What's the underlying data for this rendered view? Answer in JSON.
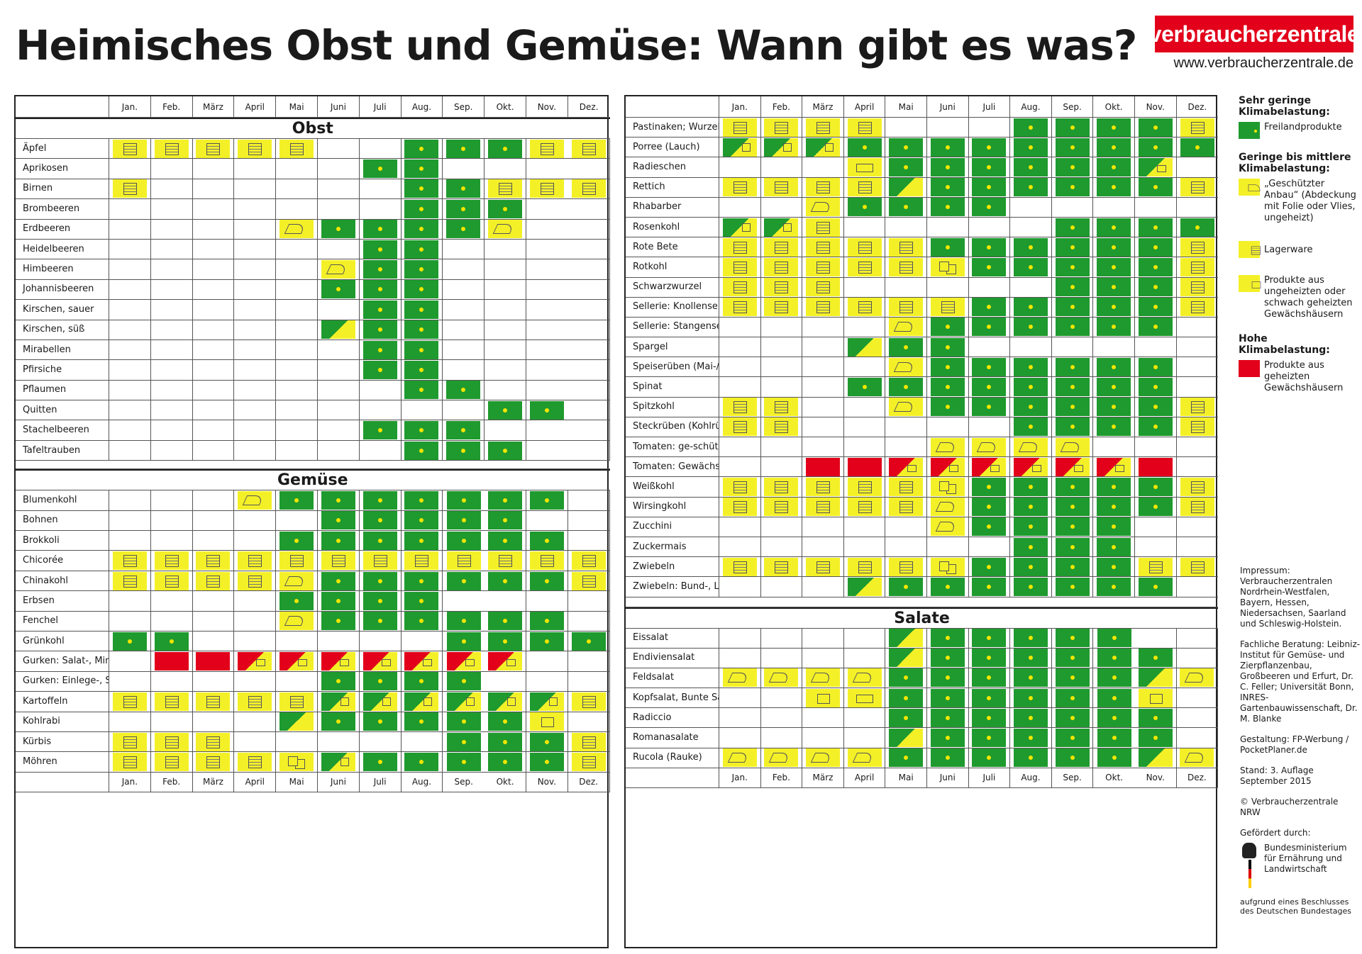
{
  "title": "Heimisches Obst und Gemüse: Wann gibt es was?",
  "logo_text": "verbraucherzentrale",
  "url": "www.verbraucherzentrale.de",
  "months": [
    "Jan.",
    "Feb.",
    "März",
    "April",
    "Mai",
    "Juni",
    "Juli",
    "Aug.",
    "Sep.",
    "Okt.",
    "Nov.",
    "Dez."
  ],
  "status_codes": {
    "G": "Freilandprodukte",
    "S": "Geschützter Anbau",
    "L": "Lagerware",
    "U": "Produkte aus ungeheizten oder schwach geheizten Gewächshäusern",
    "H": "Produkte aus geheizten Gewächshäusern"
  },
  "colors": {
    "green": "#1f9a2e",
    "yellow": "#f4f028",
    "red": "#e2001a"
  },
  "left_sections": [
    {
      "name": "Obst",
      "rows": [
        {
          "label": "Äpfel",
          "m": [
            "L",
            "L",
            "L",
            "L",
            "L",
            "",
            "",
            "G",
            "G",
            "G",
            "L",
            "L"
          ]
        },
        {
          "label": "Aprikosen",
          "m": [
            "",
            "",
            "",
            "",
            "",
            "",
            "G",
            "G",
            "",
            "",
            "",
            ""
          ]
        },
        {
          "label": "Birnen",
          "m": [
            "L",
            "",
            "",
            "",
            "",
            "",
            "",
            "G",
            "G",
            "L",
            "L",
            "L"
          ]
        },
        {
          "label": "Brombeeren",
          "m": [
            "",
            "",
            "",
            "",
            "",
            "",
            "",
            "G",
            "G",
            "G",
            "",
            ""
          ]
        },
        {
          "label": "Erdbeeren",
          "m": [
            "",
            "",
            "",
            "",
            "S",
            "G",
            "G",
            "G",
            "G",
            "S",
            "",
            ""
          ]
        },
        {
          "label": "Heidelbeeren",
          "m": [
            "",
            "",
            "",
            "",
            "",
            "",
            "G",
            "G",
            "",
            "",
            "",
            ""
          ]
        },
        {
          "label": "Himbeeren",
          "m": [
            "",
            "",
            "",
            "",
            "",
            "S",
            "G",
            "G",
            "",
            "",
            "",
            ""
          ]
        },
        {
          "label": "Johannisbeeren",
          "m": [
            "",
            "",
            "",
            "",
            "",
            "G",
            "G",
            "G",
            "",
            "",
            "",
            ""
          ]
        },
        {
          "label": "Kirschen, sauer",
          "m": [
            "",
            "",
            "",
            "",
            "",
            "",
            "G",
            "G",
            "",
            "",
            "",
            ""
          ]
        },
        {
          "label": "Kirschen, süß",
          "m": [
            "",
            "",
            "",
            "",
            "",
            "GS",
            "G",
            "G",
            "",
            "",
            "",
            ""
          ]
        },
        {
          "label": "Mirabellen",
          "m": [
            "",
            "",
            "",
            "",
            "",
            "",
            "G",
            "G",
            "",
            "",
            "",
            ""
          ]
        },
        {
          "label": "Pfirsiche",
          "m": [
            "",
            "",
            "",
            "",
            "",
            "",
            "G",
            "G",
            "",
            "",
            "",
            ""
          ]
        },
        {
          "label": "Pflaumen",
          "m": [
            "",
            "",
            "",
            "",
            "",
            "",
            "",
            "G",
            "G",
            "",
            "",
            ""
          ]
        },
        {
          "label": "Quitten",
          "m": [
            "",
            "",
            "",
            "",
            "",
            "",
            "",
            "",
            "",
            "G",
            "G",
            ""
          ]
        },
        {
          "label": "Stachelbeeren",
          "m": [
            "",
            "",
            "",
            "",
            "",
            "",
            "G",
            "G",
            "G",
            "",
            "",
            ""
          ]
        },
        {
          "label": "Tafeltrauben",
          "m": [
            "",
            "",
            "",
            "",
            "",
            "",
            "",
            "G",
            "G",
            "G",
            "",
            ""
          ]
        }
      ]
    },
    {
      "name": "Gemüse",
      "rows": [
        {
          "label": "Blumenkohl",
          "m": [
            "",
            "",
            "",
            "S",
            "G",
            "G",
            "G",
            "G",
            "G",
            "G",
            "G",
            ""
          ]
        },
        {
          "label": "Bohnen",
          "m": [
            "",
            "",
            "",
            "",
            "",
            "G",
            "G",
            "G",
            "G",
            "G",
            "",
            ""
          ]
        },
        {
          "label": "Brokkoli",
          "m": [
            "",
            "",
            "",
            "",
            "G",
            "G",
            "G",
            "G",
            "G",
            "G",
            "G",
            ""
          ]
        },
        {
          "label": "Chicorée",
          "m": [
            "L",
            "L",
            "L",
            "L",
            "L",
            "L",
            "L",
            "L",
            "L",
            "L",
            "L",
            "L"
          ]
        },
        {
          "label": "Chinakohl",
          "m": [
            "L",
            "L",
            "L",
            "L",
            "S",
            "G",
            "G",
            "G",
            "G",
            "G",
            "G",
            "L"
          ]
        },
        {
          "label": "Erbsen",
          "m": [
            "",
            "",
            "",
            "",
            "G",
            "G",
            "G",
            "G",
            "",
            "",
            "",
            ""
          ]
        },
        {
          "label": "Fenchel",
          "m": [
            "",
            "",
            "",
            "",
            "S",
            "G",
            "G",
            "G",
            "G",
            "G",
            "G",
            ""
          ]
        },
        {
          "label": "Grünkohl",
          "m": [
            "G",
            "G",
            "",
            "",
            "",
            "",
            "",
            "",
            "G",
            "G",
            "G",
            "G"
          ]
        },
        {
          "label": "Gurken: Salat-, Minigurken",
          "m": [
            "",
            "H",
            "H",
            "HU",
            "HU",
            "HU",
            "HU",
            "HU",
            "HU",
            "HU",
            "",
            ""
          ]
        },
        {
          "label": "Gurken: Einlege-, Schälgurken",
          "m": [
            "",
            "",
            "",
            "",
            "",
            "G",
            "G",
            "G",
            "G",
            "",
            "",
            ""
          ]
        },
        {
          "label": "Kartoffeln",
          "m": [
            "L",
            "L",
            "L",
            "L",
            "L",
            "GL",
            "GL",
            "GL",
            "GL",
            "GL",
            "GL",
            "L"
          ]
        },
        {
          "label": "Kohlrabi",
          "m": [
            "",
            "",
            "",
            "",
            "GS",
            "G",
            "G",
            "G",
            "G",
            "G",
            "U",
            ""
          ]
        },
        {
          "label": "Kürbis",
          "m": [
            "L",
            "L",
            "L",
            "",
            "",
            "",
            "",
            "",
            "G",
            "G",
            "G",
            "L"
          ]
        },
        {
          "label": "Möhren",
          "m": [
            "L",
            "L",
            "L",
            "L",
            "LS",
            "GL",
            "G",
            "G",
            "G",
            "G",
            "G",
            "L"
          ]
        }
      ]
    }
  ],
  "right_sections": [
    {
      "name": "",
      "rows": [
        {
          "label": "Pastinaken; Wurzelpetersilie",
          "m": [
            "L",
            "L",
            "L",
            "L",
            "",
            "",
            "",
            "G",
            "G",
            "G",
            "G",
            "L"
          ]
        },
        {
          "label": "Porree (Lauch)",
          "m": [
            "GL",
            "GL",
            "GL",
            "G",
            "G",
            "G",
            "G",
            "G",
            "G",
            "G",
            "G",
            "G"
          ]
        },
        {
          "label": "Radieschen",
          "m": [
            "",
            "",
            "",
            "SU",
            "G",
            "G",
            "G",
            "G",
            "G",
            "G",
            "GU",
            ""
          ]
        },
        {
          "label": "Rettich",
          "m": [
            "L",
            "L",
            "L",
            "L",
            "GS",
            "G",
            "G",
            "G",
            "G",
            "G",
            "G",
            "L"
          ]
        },
        {
          "label": "Rhabarber",
          "m": [
            "",
            "",
            "S",
            "G",
            "G",
            "G",
            "G",
            "",
            "",
            "",
            "",
            ""
          ]
        },
        {
          "label": "Rosenkohl",
          "m": [
            "GL",
            "GL",
            "L",
            "",
            "",
            "",
            "",
            "",
            "G",
            "G",
            "G",
            "G"
          ]
        },
        {
          "label": "Rote Bete",
          "m": [
            "L",
            "L",
            "L",
            "L",
            "L",
            "G",
            "G",
            "G",
            "G",
            "G",
            "G",
            "L"
          ]
        },
        {
          "label": "Rotkohl",
          "m": [
            "L",
            "L",
            "L",
            "L",
            "L",
            "LS",
            "G",
            "G",
            "G",
            "G",
            "G",
            "L"
          ]
        },
        {
          "label": "Schwarzwurzel",
          "m": [
            "L",
            "L",
            "L",
            "",
            "",
            "",
            "",
            "",
            "G",
            "G",
            "G",
            "L"
          ]
        },
        {
          "label": "Sellerie: Knollensellerie",
          "m": [
            "L",
            "L",
            "L",
            "L",
            "L",
            "L",
            "G",
            "G",
            "G",
            "G",
            "G",
            "L"
          ]
        },
        {
          "label": "Sellerie: Stangensellerie",
          "m": [
            "",
            "",
            "",
            "",
            "S",
            "G",
            "G",
            "G",
            "G",
            "G",
            "G",
            ""
          ]
        },
        {
          "label": "Spargel",
          "m": [
            "",
            "",
            "",
            "GS",
            "G",
            "G",
            "",
            "",
            "",
            "",
            "",
            ""
          ]
        },
        {
          "label": "Speiserüben (Mai-/Herbstrüben)",
          "m": [
            "",
            "",
            "",
            "",
            "S",
            "G",
            "G",
            "G",
            "G",
            "G",
            "G",
            ""
          ]
        },
        {
          "label": "Spinat",
          "m": [
            "",
            "",
            "",
            "G",
            "G",
            "G",
            "G",
            "G",
            "G",
            "G",
            "G",
            ""
          ]
        },
        {
          "label": "Spitzkohl",
          "m": [
            "L",
            "L",
            "",
            "",
            "S",
            "G",
            "G",
            "G",
            "G",
            "G",
            "G",
            "L"
          ]
        },
        {
          "label": "Steckrüben (Kohlrüben)",
          "m": [
            "L",
            "L",
            "",
            "",
            "",
            "",
            "",
            "G",
            "G",
            "G",
            "G",
            "L"
          ]
        },
        {
          "label": "Tomaten: ge-schützter Anbau",
          "m": [
            "",
            "",
            "",
            "",
            "",
            "S",
            "S",
            "S",
            "S",
            "",
            "",
            ""
          ]
        },
        {
          "label": "Tomaten: Gewächshaus",
          "m": [
            "",
            "",
            "H",
            "H",
            "HU",
            "HU",
            "HU",
            "HU",
            "HU",
            "HU",
            "H",
            ""
          ]
        },
        {
          "label": "Weißkohl",
          "m": [
            "L",
            "L",
            "L",
            "L",
            "L",
            "LS",
            "G",
            "G",
            "G",
            "G",
            "G",
            "L"
          ]
        },
        {
          "label": "Wirsingkohl",
          "m": [
            "L",
            "L",
            "L",
            "L",
            "L",
            "S",
            "G",
            "G",
            "G",
            "G",
            "G",
            "L"
          ]
        },
        {
          "label": "Zucchini",
          "m": [
            "",
            "",
            "",
            "",
            "",
            "S",
            "G",
            "G",
            "G",
            "G",
            "",
            ""
          ]
        },
        {
          "label": "Zuckermais",
          "m": [
            "",
            "",
            "",
            "",
            "",
            "",
            "",
            "G",
            "G",
            "G",
            "",
            ""
          ]
        },
        {
          "label": "Zwiebeln",
          "m": [
            "L",
            "L",
            "L",
            "L",
            "L",
            "LS",
            "G",
            "G",
            "G",
            "G",
            "L",
            "L"
          ]
        },
        {
          "label": "Zwiebeln: Bund-, Lauch-, Frühlings-",
          "m": [
            "",
            "",
            "",
            "GS",
            "G",
            "G",
            "G",
            "G",
            "G",
            "G",
            "G",
            ""
          ]
        }
      ]
    },
    {
      "name": "Salate",
      "rows": [
        {
          "label": "Eissalat",
          "m": [
            "",
            "",
            "",
            "",
            "GS",
            "G",
            "G",
            "G",
            "G",
            "G",
            "",
            ""
          ]
        },
        {
          "label": "Endiviensalat",
          "m": [
            "",
            "",
            "",
            "",
            "GS",
            "G",
            "G",
            "G",
            "G",
            "G",
            "G",
            ""
          ]
        },
        {
          "label": "Feldsalat",
          "m": [
            "S",
            "S",
            "S",
            "S",
            "G",
            "G",
            "G",
            "G",
            "G",
            "G",
            "GS",
            "S"
          ]
        },
        {
          "label": "Kopfsalat, Bunte Salate",
          "m": [
            "",
            "",
            "U",
            "SU",
            "G",
            "G",
            "G",
            "G",
            "G",
            "G",
            "U",
            ""
          ]
        },
        {
          "label": "Radiccio",
          "m": [
            "",
            "",
            "",
            "",
            "G",
            "G",
            "G",
            "G",
            "G",
            "G",
            "G",
            ""
          ]
        },
        {
          "label": "Romanasalate",
          "m": [
            "",
            "",
            "",
            "",
            "GS",
            "G",
            "G",
            "G",
            "G",
            "G",
            "G",
            ""
          ]
        },
        {
          "label": "Rucola (Rauke)",
          "m": [
            "S",
            "S",
            "S",
            "S",
            "G",
            "G",
            "G",
            "G",
            "G",
            "G",
            "GS",
            "S"
          ]
        }
      ]
    }
  ],
  "legend": {
    "group1_title": "Sehr geringe Klimabelastung:",
    "freiland": "Freilandprodukte",
    "group2_title": "Geringe bis mittlere Klimabelastung:",
    "geschuetzt": "„Geschützter Anbau“ (Abdeckung mit Folie oder Vlies, ungeheizt)",
    "lager": "Lagerware",
    "ungeheizt": "Produkte aus ungeheizten oder schwach geheizten Gewächshäusern",
    "group3_title": "Hohe Klimabelastung:",
    "geheizt": "Produkte aus geheizten Gewächshäusern"
  },
  "impressum": {
    "p1": "Impressum: Verbraucherzentralen Nordrhein-Westfalen, Bayern, Hessen, Niedersachsen, Saarland und Schleswig-Holstein.",
    "p2": "Fachliche Beratung: Leibniz-Institut für Gemüse- und Zierpflanzenbau, Großbeeren und Erfurt, Dr. C. Feller; Universität Bonn, INRES-Gartenbauwissenschaft, Dr. M. Blanke",
    "p3": "Gestaltung: FP-Werbung / PocketPlaner.de",
    "p4": "Stand: 3. Auflage September 2015",
    "p5": "© Verbraucherzentrale NRW",
    "p6": "Gefördert durch:",
    "ministry": "Bundesministerium für Ernährung und Landwirtschaft",
    "footer": "aufgrund eines Beschlusses des Deutschen Bundestages"
  }
}
